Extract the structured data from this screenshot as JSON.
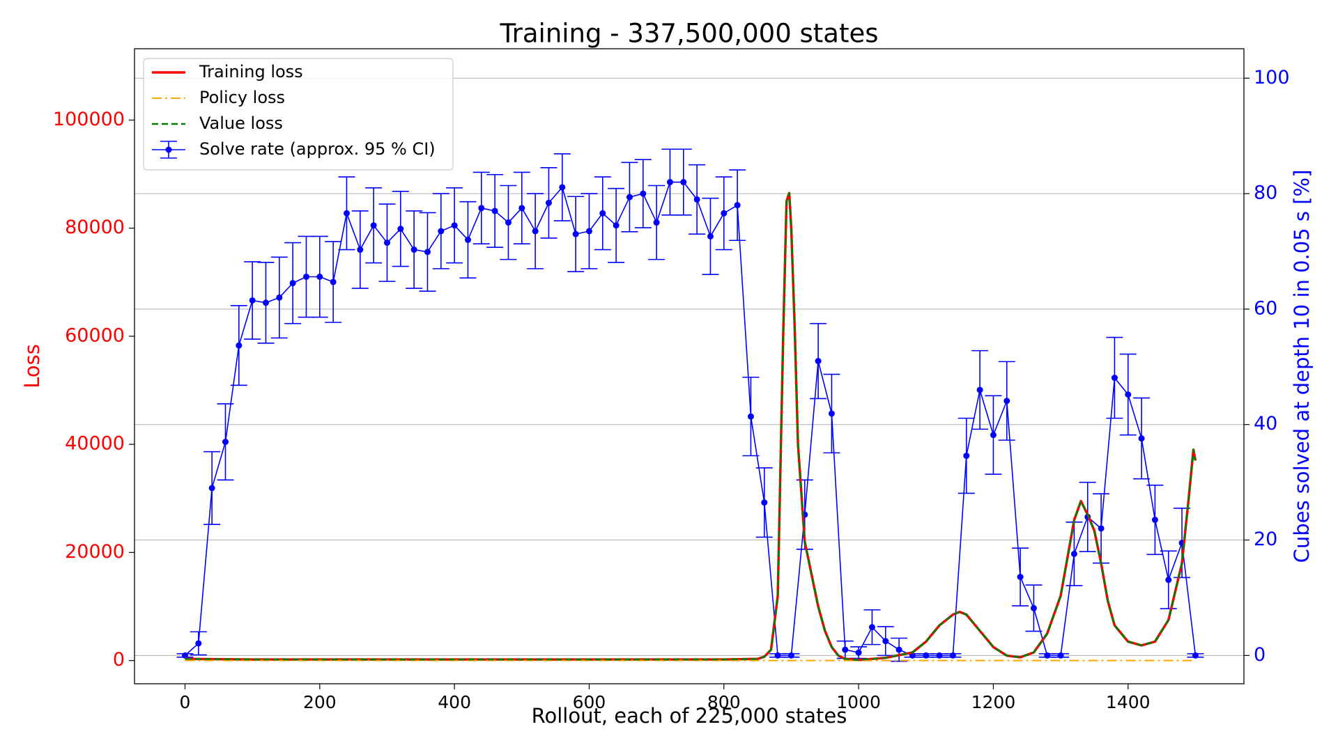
{
  "chart_data": {
    "type": "line",
    "title": "Training - 337,500,000 states",
    "xlabel": "Rollout, each of 225,000 states",
    "ylabel": "Loss",
    "y2label": "Cubes solved at depth 10 in 0.05 s [%]",
    "ylabel_color": "red",
    "y2label_color": "blue",
    "xlim": [
      -75,
      1572
    ],
    "xticks": [
      0,
      200,
      400,
      600,
      800,
      1000,
      1200,
      1400
    ],
    "ylim": [
      -4300,
      113200
    ],
    "yticks": [
      0,
      20000,
      40000,
      60000,
      80000,
      100000
    ],
    "y2lim": [
      -4.9,
      105.1
    ],
    "y2ticks": [
      0,
      20,
      40,
      60,
      80,
      100
    ],
    "grid": "y2",
    "legend": "upper left",
    "series": [
      {
        "name": "Training loss",
        "color": "red",
        "style": "solid",
        "x": [
          0,
          100,
          200,
          300,
          400,
          500,
          600,
          700,
          800,
          850,
          860,
          870,
          880,
          888,
          893,
          897,
          900,
          905,
          910,
          920,
          930,
          940,
          950,
          960,
          970,
          980,
          1000,
          1040,
          1080,
          1100,
          1120,
          1140,
          1150,
          1160,
          1180,
          1200,
          1220,
          1240,
          1260,
          1280,
          1300,
          1310,
          1320,
          1330,
          1340,
          1350,
          1360,
          1370,
          1380,
          1400,
          1420,
          1440,
          1460,
          1480,
          1490,
          1497,
          1500
        ],
        "values": [
          300,
          200,
          200,
          200,
          200,
          200,
          200,
          200,
          200,
          300,
          700,
          2000,
          12000,
          60000,
          85000,
          86500,
          80000,
          62000,
          40000,
          22000,
          16000,
          10000,
          5500,
          2500,
          900,
          300,
          100,
          500,
          1500,
          3500,
          6500,
          8500,
          9000,
          8500,
          5500,
          2500,
          900,
          600,
          1500,
          5000,
          12000,
          19000,
          26000,
          29500,
          27000,
          24000,
          18000,
          11000,
          6500,
          3500,
          2800,
          3500,
          7500,
          18000,
          30000,
          39000,
          37000
        ]
      },
      {
        "name": "Policy loss",
        "color": "orange",
        "style": "dashdot",
        "x": [
          0,
          300,
          600,
          900,
          1200,
          1500
        ],
        "values": [
          0,
          0,
          0,
          0,
          0,
          0
        ]
      },
      {
        "name": "Value loss",
        "color": "green",
        "style": "dashed",
        "x": [
          0,
          100,
          200,
          300,
          400,
          500,
          600,
          700,
          800,
          850,
          860,
          870,
          880,
          888,
          893,
          897,
          900,
          905,
          910,
          920,
          930,
          940,
          950,
          960,
          970,
          980,
          1000,
          1040,
          1080,
          1100,
          1120,
          1140,
          1150,
          1160,
          1180,
          1200,
          1220,
          1240,
          1260,
          1280,
          1300,
          1310,
          1320,
          1330,
          1340,
          1350,
          1360,
          1370,
          1380,
          1400,
          1420,
          1440,
          1460,
          1480,
          1490,
          1497,
          1500
        ],
        "values": [
          300,
          200,
          200,
          200,
          200,
          200,
          200,
          200,
          200,
          300,
          700,
          2000,
          12000,
          60000,
          85000,
          86500,
          80000,
          62000,
          40000,
          22000,
          16000,
          10000,
          5500,
          2500,
          900,
          300,
          100,
          500,
          1500,
          3500,
          6500,
          8500,
          9000,
          8500,
          5500,
          2500,
          900,
          600,
          1500,
          5000,
          12000,
          19000,
          26000,
          29500,
          27000,
          24000,
          18000,
          11000,
          6500,
          3500,
          2800,
          3500,
          7500,
          18000,
          30000,
          39000,
          37000
        ]
      },
      {
        "name": "Solve rate (approx. 95 % CI)",
        "color": "blue",
        "style": "errorbar",
        "axis": "y2",
        "x": [
          0,
          20,
          40,
          60,
          80,
          100,
          120,
          140,
          160,
          180,
          200,
          220,
          240,
          260,
          280,
          300,
          320,
          340,
          360,
          380,
          400,
          420,
          440,
          460,
          480,
          500,
          520,
          540,
          560,
          580,
          600,
          620,
          640,
          660,
          680,
          700,
          720,
          740,
          760,
          780,
          800,
          820,
          840,
          860,
          880,
          900,
          920,
          940,
          960,
          980,
          1000,
          1020,
          1040,
          1060,
          1080,
          1100,
          1120,
          1140,
          1160,
          1180,
          1200,
          1220,
          1240,
          1260,
          1280,
          1300,
          1320,
          1340,
          1360,
          1380,
          1400,
          1420,
          1440,
          1460,
          1480,
          1500
        ],
        "values": [
          0,
          2.1,
          29,
          37,
          53.7,
          61.5,
          61.1,
          62,
          64.5,
          65.6,
          65.6,
          64.7,
          76.6,
          70.3,
          74.5,
          71.5,
          73.9,
          70.3,
          69.9,
          73.5,
          74.5,
          72,
          77.5,
          77,
          75,
          77.5,
          73.5,
          78.4,
          81.1,
          73,
          73.5,
          76.6,
          74.5,
          79.4,
          80,
          75,
          82,
          82,
          79,
          72.6,
          76.6,
          78,
          41.4,
          26.5,
          0,
          0,
          24.4,
          51,
          41.9,
          1,
          0.5,
          4.9,
          2.5,
          1,
          0,
          0,
          0,
          0,
          34.6,
          46,
          38.2,
          44.1,
          13.6,
          8.2,
          0,
          0,
          17.6,
          24,
          22,
          48.1,
          45.2,
          37.6,
          23.5,
          13.1,
          19.5,
          0
        ],
        "errors": [
          0.3,
          2,
          6.3,
          6.6,
          6.9,
          6.7,
          7,
          7,
          7,
          7,
          7,
          7,
          6.3,
          6.7,
          6.5,
          6.7,
          6.5,
          6.7,
          6.8,
          6.5,
          6.5,
          6.6,
          6.2,
          6.3,
          6.4,
          6.2,
          6.5,
          6.1,
          5.8,
          6.5,
          6.5,
          6.3,
          6.4,
          6,
          5.9,
          6.4,
          5.7,
          5.7,
          6,
          6.6,
          6.3,
          6.1,
          6.8,
          6,
          0.3,
          0.3,
          6,
          6.5,
          6.8,
          1.5,
          1,
          3,
          2.5,
          2,
          0.3,
          0.3,
          0.3,
          0.3,
          6.5,
          6.8,
          6.8,
          6.8,
          5,
          4,
          0.3,
          0.3,
          5.5,
          6,
          6,
          7,
          7,
          7,
          6,
          5,
          6,
          0.3
        ]
      }
    ]
  }
}
